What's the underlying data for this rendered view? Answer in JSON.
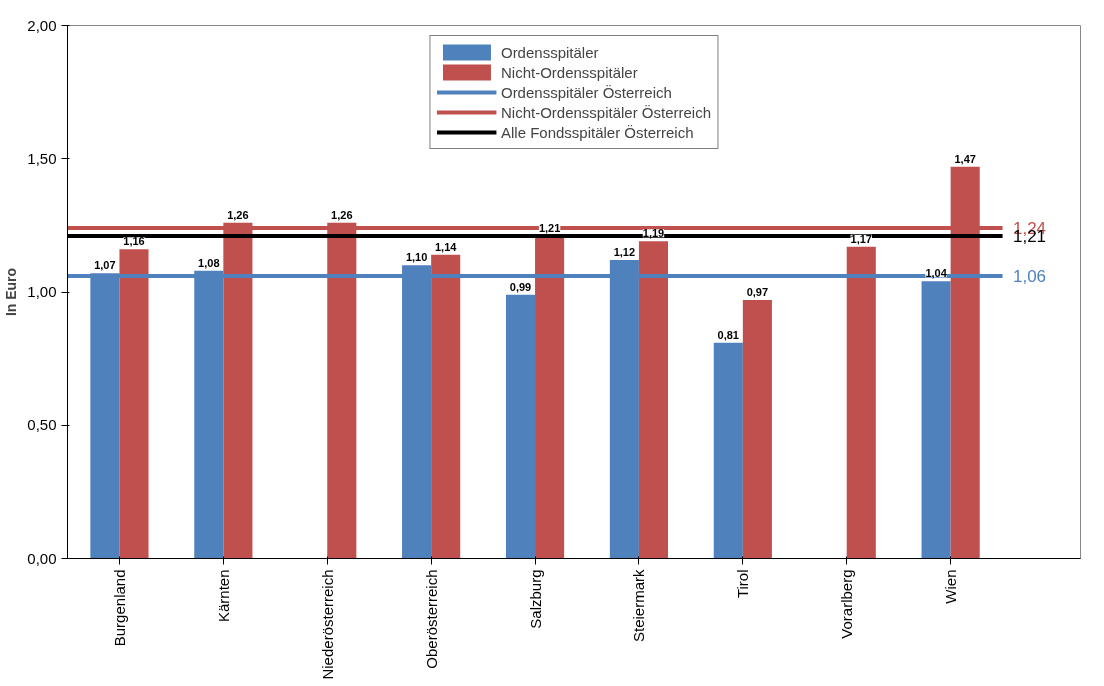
{
  "chart_data": {
    "type": "bar",
    "ylabel": "In Euro",
    "categories": [
      "Burgenland",
      "Kärnten",
      "Niederösterreich",
      "Oberösterreich",
      "Salzburg",
      "Steiermark",
      "Tirol",
      "Vorarlberg",
      "Wien"
    ],
    "series": [
      {
        "name": "Ordensspitäler",
        "color": "#4f81bd",
        "values": [
          1.07,
          1.08,
          null,
          1.1,
          0.99,
          1.12,
          0.81,
          null,
          1.04
        ],
        "value_labels": [
          "1,07",
          "1,08",
          null,
          "1,10",
          "0,99",
          "1,12",
          "0,81",
          null,
          "1,04"
        ]
      },
      {
        "name": "Nicht-Ordensspitäler",
        "color": "#c0504d",
        "values": [
          1.16,
          1.26,
          1.26,
          1.14,
          1.21,
          1.19,
          0.97,
          1.17,
          1.47
        ],
        "value_labels": [
          "1,16",
          "1,26",
          "1,26",
          "1,14",
          "1,21",
          "1,19",
          "0,97",
          "1,17",
          "1,47"
        ]
      }
    ],
    "ref_lines": [
      {
        "axis": "y",
        "value": 1.06,
        "label": "Ordensspitäler Österreich",
        "color": "#4f81bd",
        "line_style": "solid"
      },
      {
        "axis": "y",
        "value": 1.24,
        "label": "Nicht-Ordensspitäler Österreich",
        "color": "#c0504d",
        "line_style": "solid"
      },
      {
        "axis": "y",
        "value": 1.21,
        "label": "Alle Fondsspitäler Österreich",
        "color": "#000000",
        "line_style": "solid"
      }
    ],
    "annotations": [
      "1,06",
      "1,24",
      "1,21"
    ],
    "ylim": [
      0,
      2
    ],
    "yticks": [
      {
        "value": 0,
        "label": "0,00"
      },
      {
        "value": 0.5,
        "label": "0,50"
      },
      {
        "value": 1,
        "label": "1,00"
      },
      {
        "value": 1.5,
        "label": "1,50"
      },
      {
        "value": 2,
        "label": "2,00"
      }
    ],
    "grid": false,
    "legend": "top"
  }
}
